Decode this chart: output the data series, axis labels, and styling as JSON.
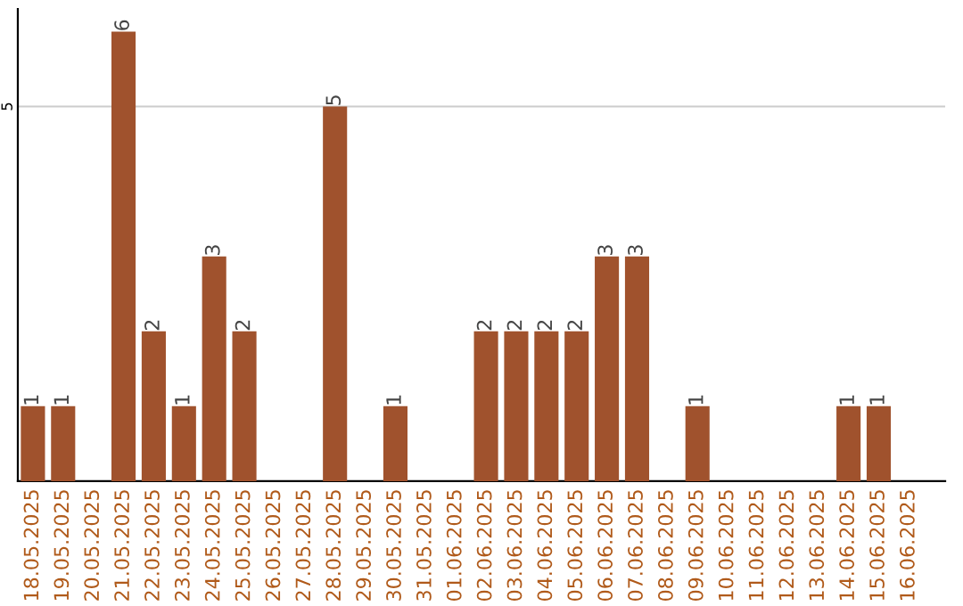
{
  "chart_data": {
    "type": "bar",
    "categories": [
      "18.05.2025",
      "19.05.2025",
      "20.05.2025",
      "21.05.2025",
      "22.05.2025",
      "23.05.2025",
      "24.05.2025",
      "25.05.2025",
      "26.05.2025",
      "27.05.2025",
      "28.05.2025",
      "29.05.2025",
      "30.05.2025",
      "31.05.2025",
      "01.06.2025",
      "02.06.2025",
      "03.06.2025",
      "04.06.2025",
      "05.06.2025",
      "06.06.2025",
      "07.06.2025",
      "08.06.2025",
      "09.06.2025",
      "10.06.2025",
      "11.06.2025",
      "12.06.2025",
      "13.06.2025",
      "14.06.2025",
      "15.06.2025",
      "16.06.2025"
    ],
    "values": [
      1,
      1,
      0,
      6,
      2,
      1,
      3,
      2,
      0,
      0,
      5,
      0,
      1,
      0,
      0,
      2,
      2,
      2,
      2,
      3,
      3,
      0,
      1,
      0,
      0,
      0,
      0,
      1,
      1,
      0
    ],
    "value_labels": [
      "1",
      "1",
      null,
      "6",
      "2",
      "1",
      "3",
      "2",
      null,
      null,
      "5",
      null,
      "1",
      null,
      null,
      "2",
      "2",
      "2",
      "2",
      "3",
      "3",
      null,
      "1",
      null,
      null,
      null,
      null,
      "1",
      "1",
      null
    ],
    "color": "#a0522d",
    "ylim": [
      0,
      6.3
    ],
    "yticks": [
      5
    ],
    "grid": "y"
  }
}
